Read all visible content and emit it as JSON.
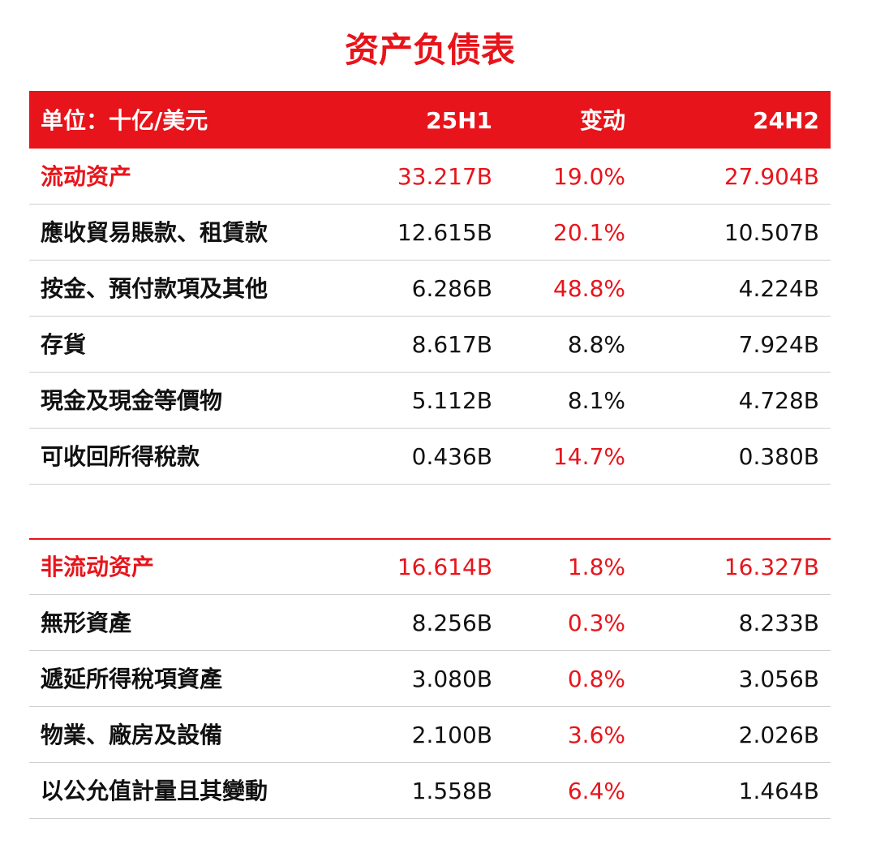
{
  "title": "资产负债表",
  "header": [
    "单位：十亿/美元",
    "25H1",
    "变动",
    "24H2"
  ],
  "sections": [
    {
      "rows": [
        {
          "cells": [
            "流动资产",
            "33.217B",
            "19.0%",
            "27.904B"
          ],
          "color": "#e8141b",
          "change_color": "#e8141b"
        },
        {
          "cells": [
            "應收貿易賬款、租賃款",
            "12.615B",
            "20.1%",
            "10.507B"
          ],
          "color": "#111111",
          "change_color": "#e8141b"
        },
        {
          "cells": [
            "按金、預付款項及其他",
            "6.286B",
            "48.8%",
            "4.224B"
          ],
          "color": "#111111",
          "change_color": "#e8141b"
        },
        {
          "cells": [
            "存貨",
            "8.617B",
            "8.8%",
            "7.924B"
          ],
          "color": "#111111",
          "change_color": "#111111"
        },
        {
          "cells": [
            "現金及現金等價物",
            "5.112B",
            "8.1%",
            "4.728B"
          ],
          "color": "#111111",
          "change_color": "#111111"
        },
        {
          "cells": [
            "可收回所得稅款",
            "0.436B",
            "14.7%",
            "0.380B"
          ],
          "color": "#111111",
          "change_color": "#e8141b"
        }
      ]
    },
    {
      "rows": [
        {
          "cells": [
            "非流动资产",
            "16.614B",
            "1.8%",
            "16.327B"
          ],
          "color": "#e8141b",
          "change_color": "#e8141b"
        },
        {
          "cells": [
            "無形資產",
            "8.256B",
            "0.3%",
            "8.233B"
          ],
          "color": "#111111",
          "change_color": "#e8141b"
        },
        {
          "cells": [
            "遞延所得稅項資產",
            "3.080B",
            "0.8%",
            "3.056B"
          ],
          "color": "#111111",
          "change_color": "#e8141b"
        },
        {
          "cells": [
            "物業、廠房及設備",
            "2.100B",
            "3.6%",
            "2.026B"
          ],
          "color": "#111111",
          "change_color": "#e8141b"
        },
        {
          "cells": [
            "以公允值計量且其變動",
            "1.558B",
            "6.4%",
            "1.464B"
          ],
          "color": "#111111",
          "change_color": "#e8141b"
        }
      ]
    }
  ]
}
